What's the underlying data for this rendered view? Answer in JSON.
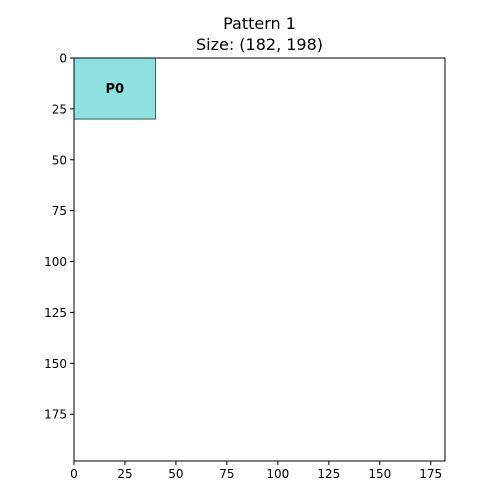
{
  "chart_data": {
    "type": "rectangle-layout",
    "title_line1": "Pattern 1",
    "title_line2": "Size: (182, 198)",
    "xlim": [
      0,
      182
    ],
    "ylim": [
      0,
      198
    ],
    "y_inverted": true,
    "x_ticks": [
      0,
      25,
      50,
      75,
      100,
      125,
      150,
      175
    ],
    "y_ticks": [
      0,
      25,
      50,
      75,
      100,
      125,
      150,
      175
    ],
    "pieces": [
      {
        "label": "P0",
        "x": 0,
        "y": 0,
        "width": 40,
        "height": 30,
        "fill": "#8fe0e0",
        "edge": "#3d5a5a"
      }
    ],
    "axis_color": "#000000",
    "background": "#ffffff"
  }
}
